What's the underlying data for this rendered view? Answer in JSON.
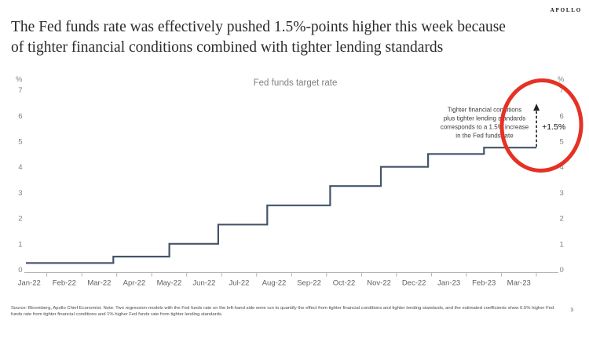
{
  "logo": "APOLLO",
  "page_number": "3",
  "title_lines": [
    "The Fed funds rate was effectively pushed 1.5%-points higher this week because",
    "of tighter financial conditions combined with tighter lending standards"
  ],
  "chart_data": {
    "type": "line",
    "subtype": "step",
    "title": "Fed funds target rate",
    "unit": "%",
    "ylim": [
      0,
      7
    ],
    "yticks": [
      0,
      1,
      2,
      3,
      4,
      5,
      6,
      7
    ],
    "x_tick_labels": [
      "Jan-22",
      "Feb-22",
      "Mar-22",
      "Apr-22",
      "May-22",
      "Jun-22",
      "Jul-22",
      "Aug-22",
      "Sep-22",
      "Oct-22",
      "Nov-22",
      "Dec-22",
      "Jan-23",
      "Feb-23",
      "Mar-23"
    ],
    "series": [
      {
        "name": "Fed funds target rate",
        "points": [
          {
            "months_from_start": 0.0,
            "value": 0.25
          },
          {
            "months_from_start": 2.5,
            "value": 0.5
          },
          {
            "months_from_start": 4.1,
            "value": 1.0
          },
          {
            "months_from_start": 5.5,
            "value": 1.75
          },
          {
            "months_from_start": 6.9,
            "value": 2.5
          },
          {
            "months_from_start": 8.7,
            "value": 3.25
          },
          {
            "months_from_start": 10.15,
            "value": 4.0
          },
          {
            "months_from_start": 11.5,
            "value": 4.5
          },
          {
            "months_from_start": 13.1,
            "value": 4.75
          },
          {
            "months_from_start": 14.6,
            "value": 4.75
          }
        ]
      }
    ],
    "line_color": "#44546a",
    "annotation": {
      "text_lines": [
        "Tighter financial conditions",
        "plus tighter lending standards",
        "corresponds to a 1.5% increase",
        "in the Fed funds rate"
      ],
      "arrow_label": "+1.5%",
      "arrow_from_value": 4.75,
      "arrow_to_value": 6.25,
      "arrow_color": "#222222",
      "highlight_color": "#e63125"
    },
    "legend_position": "none",
    "grid": false
  },
  "footer": {
    "source_note": "Source: Bloomberg, Apollo Chief Economist. Note: Two regression models with the Fed funds rate on the left-hand side were run to quantify the effect from tighter financial conditions and tighter lending standards, and the estimated coefficients show 0.5% higher Fed funds rate from tighter financial conditions and 1% higher Fed funds rate from tighter lending standards."
  }
}
